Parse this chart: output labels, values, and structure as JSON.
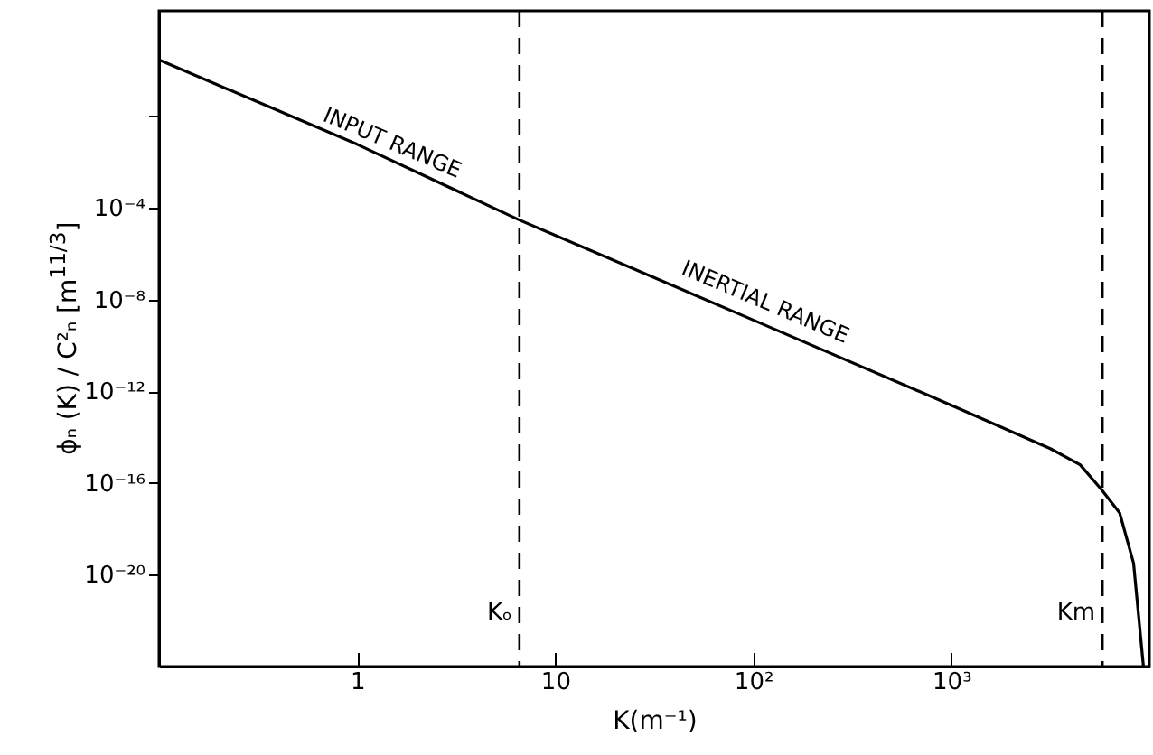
{
  "chart_data": {
    "type": "line",
    "xlabel": "K(m⁻¹)",
    "ylabel": "ϕₙ (K) / C²ₙ [m$^{11/3}$]",
    "log": "xy",
    "xlim": [
      0.1,
      10000
    ],
    "ylim": [
      1e-24,
      40000
    ],
    "xticks": [
      1,
      10,
      {
        "value": 100,
        "label": "10²"
      },
      {
        "value": 1000,
        "label": "10³"
      }
    ],
    "yticks": [
      {
        "value": 1,
        "label": null
      },
      {
        "value": 0.0001,
        "label": "10⁻⁴"
      },
      {
        "value": 1e-08,
        "label": "10⁻⁸"
      },
      {
        "value": 1e-12,
        "label": "10⁻¹²"
      },
      {
        "value": 1e-16,
        "label": "10⁻¹⁶"
      },
      {
        "value": 1e-20,
        "label": "10⁻²⁰"
      }
    ],
    "series": [
      {
        "color": "#000000",
        "x": [
          0.1,
          1,
          6.6,
          100,
          1000,
          3160,
          4470,
          5750,
          7080,
          8320,
          9330
        ],
        "values": [
          290,
          0.06,
          3e-05,
          1.3e-09,
          2.5e-13,
          3.2e-15,
          6.3e-16,
          5e-17,
          5e-18,
          3.2e-20,
          1e-24
        ]
      }
    ],
    "ref_lines": [
      {
        "axis": "x",
        "value": 6.6,
        "label": "Kₒ",
        "line_style": "dashed"
      },
      {
        "axis": "x",
        "value": 5800,
        "label": "Km",
        "line_style": "dashed"
      }
    ],
    "annotations": [
      {
        "text": "INPUT RANGE",
        "x": 1.4,
        "y": 0.016
      },
      {
        "text": "INERTIAL RANGE",
        "x": 107,
        "y": 1.8e-09
      }
    ],
    "grid": false,
    "marker": "none",
    "line_style": "solid"
  }
}
